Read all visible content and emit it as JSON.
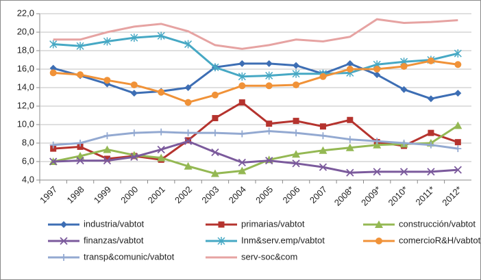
{
  "chart_data": {
    "type": "line",
    "categories": [
      "1997",
      "1998",
      "1999",
      "2000",
      "2001",
      "2002",
      "2003",
      "2004",
      "2005",
      "2006",
      "2007",
      "2008*",
      "2009*",
      "2010*",
      "2011*",
      "2012*"
    ],
    "ylim": [
      4,
      22
    ],
    "yticks": [
      {
        "value": 4,
        "label": "4,0"
      },
      {
        "value": 6,
        "label": "6,0"
      },
      {
        "value": 8,
        "label": "8,0"
      },
      {
        "value": 10,
        "label": "10,0"
      },
      {
        "value": 12,
        "label": "12,0"
      },
      {
        "value": 14,
        "label": "14,0"
      },
      {
        "value": 16,
        "label": "16,0"
      },
      {
        "value": 18,
        "label": "18,0"
      },
      {
        "value": 20,
        "label": "20,0"
      },
      {
        "value": 22,
        "label": "22,0"
      }
    ],
    "grid": true,
    "legend": "bottom",
    "series": [
      {
        "name": "industria/vabtot",
        "color": "#3d6eb4",
        "marker": "diamond",
        "values": [
          16.1,
          15.3,
          14.4,
          13.4,
          13.6,
          14.0,
          16.2,
          16.6,
          16.6,
          16.4,
          15.5,
          16.6,
          15.4,
          13.8,
          12.8,
          13.4
        ]
      },
      {
        "name": "primarias/vabtot",
        "color": "#b5332e",
        "marker": "square",
        "values": [
          7.4,
          7.6,
          6.3,
          6.6,
          6.2,
          8.3,
          10.7,
          12.4,
          10.1,
          10.4,
          9.8,
          10.5,
          8.1,
          7.7,
          9.1,
          8.1
        ]
      },
      {
        "name": "construcción/vabtot",
        "color": "#94b853",
        "marker": "triangle",
        "values": [
          6.0,
          6.6,
          7.3,
          6.7,
          6.4,
          5.5,
          4.7,
          5.0,
          6.2,
          6.8,
          7.2,
          7.5,
          7.8,
          7.9,
          8.0,
          9.9
        ]
      },
      {
        "name": "finanzas/vabtot",
        "color": "#7b5a9c",
        "marker": "x",
        "values": [
          6.0,
          6.1,
          6.1,
          6.5,
          7.3,
          8.2,
          7.0,
          5.9,
          6.1,
          5.8,
          5.4,
          4.8,
          4.9,
          4.9,
          4.9,
          5.1
        ]
      },
      {
        "name": "Inm&serv.emp/vabtot",
        "color": "#46a8c4",
        "marker": "asterisk",
        "values": [
          18.7,
          18.5,
          19.0,
          19.4,
          19.6,
          18.7,
          16.2,
          15.2,
          15.3,
          15.5,
          15.5,
          15.6,
          16.5,
          16.8,
          17.0,
          17.7
        ]
      },
      {
        "name": "comercioR&H/vabtot",
        "color": "#f09238",
        "marker": "circle",
        "values": [
          15.6,
          15.4,
          14.8,
          14.3,
          13.5,
          12.4,
          13.2,
          14.2,
          14.2,
          14.3,
          15.2,
          16.0,
          16.0,
          16.3,
          16.9,
          16.5
        ]
      },
      {
        "name": "transp&comunic/vabtot",
        "color": "#93a9d1",
        "marker": "plus",
        "values": [
          7.8,
          8.0,
          8.8,
          9.1,
          9.2,
          9.1,
          9.1,
          9.0,
          9.3,
          9.1,
          8.8,
          8.4,
          8.2,
          8.0,
          7.8,
          7.4
        ]
      },
      {
        "name": "serv-soc&com",
        "color": "#e6a3a2",
        "marker": "none",
        "values": [
          19.2,
          19.2,
          20.0,
          20.6,
          20.9,
          20.1,
          18.6,
          18.2,
          18.6,
          19.2,
          19.0,
          19.5,
          21.4,
          21.0,
          21.1,
          21.3
        ]
      }
    ]
  }
}
